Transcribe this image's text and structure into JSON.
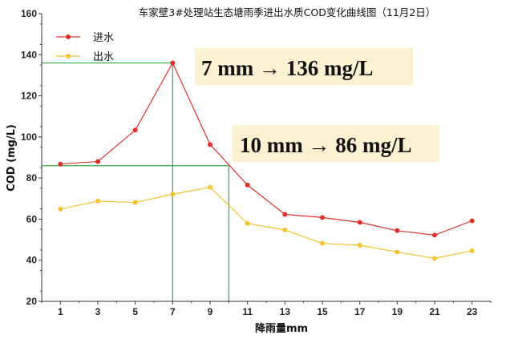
{
  "chart_data": {
    "type": "line",
    "title": "车家壁3#处理站生态塘雨季进出水质COD变化曲线图（11月2日）",
    "xlabel": "降雨量mm",
    "ylabel": "COD (mg/L)",
    "x": [
      1,
      3,
      5,
      7,
      9,
      11,
      13,
      15,
      17,
      19,
      21,
      23
    ],
    "xlim": [
      0,
      24
    ],
    "ylim": [
      20,
      160
    ],
    "yticks": [
      20,
      40,
      60,
      80,
      100,
      120,
      140,
      160
    ],
    "series": [
      {
        "name": "进水",
        "color": "#e0302a",
        "values": [
          86.8,
          88,
          103.3,
          136,
          96.3,
          76.6,
          62.3,
          60.8,
          58.4,
          54.4,
          52.2,
          59.2
        ]
      },
      {
        "name": "出水",
        "color": "#f2c230",
        "values": [
          64.9,
          68.8,
          68.1,
          72.1,
          75.5,
          57.9,
          54.7,
          48.2,
          47.3,
          44,
          40.9,
          44.6
        ]
      }
    ],
    "legend_position": "top-left",
    "reference_lines": [
      {
        "x": 7,
        "y": 136,
        "color": "#33aa44"
      },
      {
        "x": 10,
        "y": 86,
        "color": "#33aa44"
      }
    ],
    "annotations": [
      {
        "text": "7 mm → 136 mg/L"
      },
      {
        "text": "10 mm → 86 mg/L"
      }
    ]
  }
}
